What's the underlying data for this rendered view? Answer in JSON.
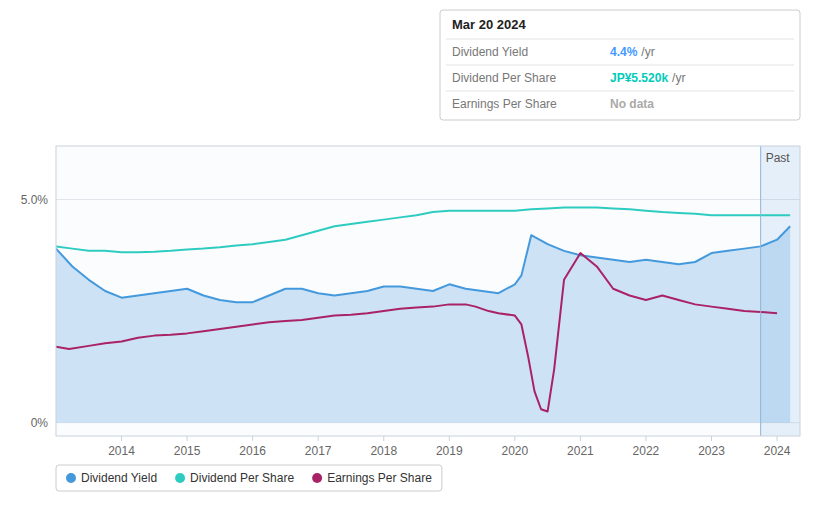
{
  "chart_data": {
    "type": "line",
    "xlim": [
      2013.0,
      2024.35
    ],
    "ylim": [
      -0.3,
      6.2
    ],
    "xticks": [
      2014,
      2015,
      2016,
      2017,
      2018,
      2019,
      2020,
      2021,
      2022,
      2023,
      2024
    ],
    "yticks": [
      {
        "value": 0.0,
        "label": "0%"
      },
      {
        "value": 5.0,
        "label": "5.0%"
      }
    ],
    "grid": true,
    "legend": "bottom",
    "series": [
      {
        "name": "Dividend Yield",
        "type": "area",
        "color": "#4499dd",
        "x": [
          2013.0,
          2013.25,
          2013.5,
          2013.75,
          2014.0,
          2014.25,
          2014.5,
          2014.75,
          2015.0,
          2015.25,
          2015.5,
          2015.75,
          2016.0,
          2016.25,
          2016.5,
          2016.75,
          2017.0,
          2017.25,
          2017.5,
          2017.75,
          2018.0,
          2018.25,
          2018.5,
          2018.75,
          2019.0,
          2019.25,
          2019.5,
          2019.75,
          2020.0,
          2020.1,
          2020.25,
          2020.5,
          2020.75,
          2021.0,
          2021.25,
          2021.5,
          2021.75,
          2022.0,
          2022.25,
          2022.5,
          2022.75,
          2023.0,
          2023.25,
          2023.5,
          2023.75,
          2024.0,
          2024.2
        ],
        "values": [
          3.9,
          3.5,
          3.2,
          2.95,
          2.8,
          2.85,
          2.9,
          2.95,
          3.0,
          2.85,
          2.75,
          2.7,
          2.7,
          2.85,
          3.0,
          3.0,
          2.9,
          2.85,
          2.9,
          2.95,
          3.05,
          3.05,
          3.0,
          2.95,
          3.1,
          3.0,
          2.95,
          2.9,
          3.1,
          3.3,
          4.2,
          4.0,
          3.85,
          3.75,
          3.7,
          3.65,
          3.6,
          3.65,
          3.6,
          3.55,
          3.6,
          3.8,
          3.85,
          3.9,
          3.95,
          4.1,
          4.4
        ]
      },
      {
        "name": "Dividend Per Share",
        "type": "line",
        "color": "#2eccc0",
        "x": [
          2013.0,
          2013.25,
          2013.5,
          2013.75,
          2014.0,
          2014.25,
          2014.5,
          2014.75,
          2015.0,
          2015.25,
          2015.5,
          2015.75,
          2016.0,
          2016.25,
          2016.5,
          2016.75,
          2017.0,
          2017.25,
          2017.5,
          2017.75,
          2018.0,
          2018.25,
          2018.5,
          2018.75,
          2019.0,
          2019.25,
          2019.5,
          2019.75,
          2020.0,
          2020.25,
          2020.5,
          2020.75,
          2021.0,
          2021.25,
          2021.5,
          2021.75,
          2022.0,
          2022.25,
          2022.5,
          2022.75,
          2023.0,
          2023.25,
          2023.5,
          2023.75,
          2024.0,
          2024.2
        ],
        "values": [
          3.95,
          3.9,
          3.85,
          3.85,
          3.82,
          3.82,
          3.83,
          3.85,
          3.88,
          3.9,
          3.93,
          3.97,
          4.0,
          4.05,
          4.1,
          4.2,
          4.3,
          4.4,
          4.45,
          4.5,
          4.55,
          4.6,
          4.65,
          4.72,
          4.75,
          4.75,
          4.75,
          4.75,
          4.75,
          4.78,
          4.8,
          4.82,
          4.82,
          4.82,
          4.8,
          4.78,
          4.75,
          4.72,
          4.7,
          4.68,
          4.65,
          4.65,
          4.65,
          4.65,
          4.65,
          4.65
        ]
      },
      {
        "name": "Earnings Per Share",
        "type": "line",
        "color": "#aa2266",
        "x": [
          2013.0,
          2013.2,
          2013.5,
          2013.75,
          2014.0,
          2014.25,
          2014.5,
          2014.75,
          2015.0,
          2015.25,
          2015.5,
          2015.75,
          2016.0,
          2016.25,
          2016.5,
          2016.75,
          2017.0,
          2017.25,
          2017.5,
          2017.75,
          2018.0,
          2018.25,
          2018.5,
          2018.75,
          2019.0,
          2019.25,
          2019.4,
          2019.5,
          2019.6,
          2019.75,
          2020.0,
          2020.1,
          2020.2,
          2020.3,
          2020.4,
          2020.5,
          2020.6,
          2020.75,
          2021.0,
          2021.25,
          2021.5,
          2021.75,
          2022.0,
          2022.25,
          2022.5,
          2022.75,
          2023.0,
          2023.25,
          2023.5,
          2023.75,
          2024.0
        ],
        "values": [
          1.7,
          1.65,
          1.72,
          1.78,
          1.82,
          1.9,
          1.95,
          1.97,
          2.0,
          2.05,
          2.1,
          2.15,
          2.2,
          2.25,
          2.28,
          2.3,
          2.35,
          2.4,
          2.42,
          2.45,
          2.5,
          2.55,
          2.58,
          2.6,
          2.65,
          2.65,
          2.6,
          2.55,
          2.5,
          2.45,
          2.4,
          2.2,
          1.5,
          0.7,
          0.3,
          0.25,
          1.2,
          3.2,
          3.8,
          3.5,
          3.0,
          2.85,
          2.75,
          2.85,
          2.75,
          2.65,
          2.6,
          2.55,
          2.5,
          2.48,
          2.45
        ]
      }
    ],
    "annotations": [
      {
        "text": "Past",
        "x": 2023.75
      }
    ],
    "tooltip": {
      "title": "Mar 20 2024",
      "rows": [
        {
          "label": "Dividend Yield",
          "value": "4.4%",
          "color": "#4499ff",
          "suffix": "/yr"
        },
        {
          "label": "Dividend Per Share",
          "value": "JP¥5.520k",
          "color": "#00ccbb",
          "suffix": "/yr"
        },
        {
          "label": "Earnings Per Share",
          "value": "No data",
          "color": "#aaaaaa"
        }
      ]
    }
  }
}
